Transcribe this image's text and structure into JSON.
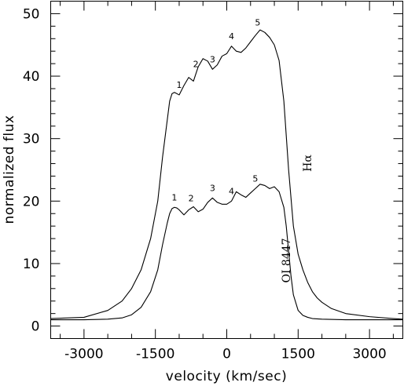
{
  "chart_data": {
    "type": "line",
    "title": "",
    "xlabel": "velocity (km/sec)",
    "ylabel": "normalized flux",
    "xlim": [
      -3700,
      3700
    ],
    "ylim": [
      -2,
      52
    ],
    "x_ticks": [
      -3000,
      -1500,
      0,
      1500,
      3000
    ],
    "x_tick_labels": [
      "-3000",
      "-1500",
      "0",
      "1500",
      "3000"
    ],
    "y_ticks": [
      0,
      10,
      20,
      30,
      40,
      50
    ],
    "y_tick_labels": [
      "0",
      "10",
      "20",
      "30",
      "40",
      "50"
    ],
    "grid": false,
    "legend": "none",
    "series": [
      {
        "label": "Hα",
        "x": [
          -3700,
          -3000,
          -2500,
          -2200,
          -2000,
          -1800,
          -1600,
          -1450,
          -1350,
          -1250,
          -1200,
          -1150,
          -1100,
          -1000,
          -900,
          -800,
          -700,
          -600,
          -500,
          -400,
          -300,
          -200,
          -100,
          0,
          100,
          200,
          300,
          400,
          500,
          600,
          700,
          800,
          900,
          1000,
          1100,
          1200,
          1300,
          1400,
          1500,
          1600,
          1700,
          1800,
          1900,
          2000,
          2200,
          2500,
          3000,
          3500,
          3700
        ],
        "y": [
          1.2,
          1.4,
          2.5,
          4,
          6,
          9,
          14,
          20,
          27,
          33,
          36,
          37.2,
          37.4,
          37,
          38.5,
          39.8,
          39.2,
          41.5,
          42.8,
          42.4,
          41.1,
          41.8,
          43.2,
          43.6,
          44.8,
          44,
          43.8,
          44.5,
          45.5,
          46.5,
          47.4,
          47,
          46.2,
          45,
          42.5,
          36,
          25,
          16,
          11.5,
          9,
          7,
          5.5,
          4.5,
          3.8,
          2.8,
          2,
          1.5,
          1.2,
          1.1
        ]
      },
      {
        "label": "OI 8447",
        "x": [
          -3700,
          -3000,
          -2500,
          -2200,
          -2000,
          -1800,
          -1600,
          -1450,
          -1350,
          -1250,
          -1200,
          -1150,
          -1100,
          -1050,
          -1000,
          -900,
          -800,
          -700,
          -600,
          -500,
          -400,
          -300,
          -200,
          -100,
          0,
          100,
          200,
          300,
          400,
          500,
          600,
          700,
          800,
          900,
          1000,
          1100,
          1200,
          1250,
          1300,
          1350,
          1400,
          1500,
          1600,
          1700,
          1800,
          2000,
          2500,
          3000,
          3500,
          3700
        ],
        "y": [
          1,
          1,
          1.1,
          1.3,
          1.8,
          3,
          5.5,
          9,
          13,
          16.5,
          18,
          18.8,
          19,
          18.9,
          18.6,
          17.8,
          18.6,
          19.1,
          18.3,
          18.7,
          19.8,
          20.5,
          19.8,
          19.5,
          19.5,
          20,
          21.5,
          21,
          20.6,
          21.3,
          22,
          22.7,
          22.5,
          22,
          22.3,
          21.5,
          19,
          16,
          12,
          8,
          5,
          2.5,
          1.7,
          1.4,
          1.2,
          1.1,
          1,
          1,
          1,
          1
        ]
      }
    ],
    "peak_labels": [
      {
        "text": "1",
        "series": "Hα",
        "x": -1000
      },
      {
        "text": "2",
        "series": "Hα",
        "x": -650
      },
      {
        "text": "3",
        "series": "Hα",
        "x": -300
      },
      {
        "text": "4",
        "series": "Hα",
        "x": 100
      },
      {
        "text": "5",
        "series": "Hα",
        "x": 650
      },
      {
        "text": "1",
        "series": "OI 8447",
        "x": -1100
      },
      {
        "text": "2",
        "series": "OI 8447",
        "x": -750
      },
      {
        "text": "3",
        "series": "OI 8447",
        "x": -300
      },
      {
        "text": "4",
        "series": "OI 8447",
        "x": 100
      },
      {
        "text": "5",
        "series": "OI 8447",
        "x": 600
      }
    ]
  }
}
